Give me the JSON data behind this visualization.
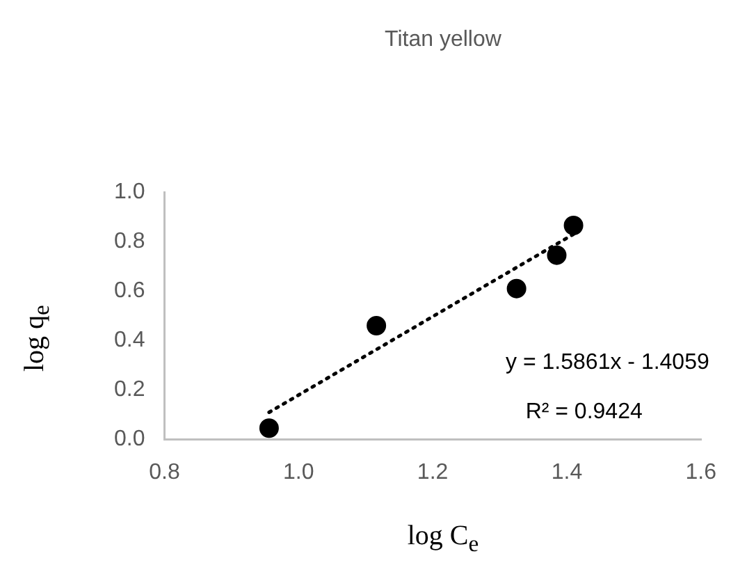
{
  "chart_data": {
    "type": "scatter",
    "title": "Titan yellow",
    "xlabel": "log C$_{e}$",
    "ylabel": "log q$_{e}$",
    "series": [
      {
        "type": "scatter",
        "color": "#000000",
        "marker": "circle",
        "x": [
          0.956,
          1.116,
          1.325,
          1.385,
          1.41
        ],
        "values": [
          0.046,
          0.46,
          0.61,
          0.745,
          0.865
        ]
      },
      {
        "type": "line",
        "color": "#000000",
        "marker": "none",
        "line_style": "dotted",
        "x": [
          0.956,
          1.41
        ],
        "values": [
          0.11,
          0.83
        ]
      }
    ],
    "xlim": [
      0.8,
      1.6
    ],
    "xticks": [
      {
        "value": 0.8,
        "label": "0.8"
      },
      {
        "value": 1,
        "label": "1.0"
      },
      {
        "value": 1.2,
        "label": "1.2"
      },
      {
        "value": 1.4,
        "label": "1.4"
      },
      {
        "value": 1.6,
        "label": "1.6"
      }
    ],
    "ylim": [
      0,
      1.0
    ],
    "yticks": [
      {
        "value": 0,
        "label": "0.0"
      },
      {
        "value": 0.2,
        "label": "0.2"
      },
      {
        "value": 0.4,
        "label": "0.4"
      },
      {
        "value": 0.6,
        "label": "0.6"
      },
      {
        "value": 0.8,
        "label": "0.8"
      },
      {
        "value": 1,
        "label": "1.0"
      }
    ],
    "grid": false,
    "legend": false,
    "annotations": [
      "y = 1.5861x - 1.4059",
      "R² = 0.9424"
    ]
  }
}
